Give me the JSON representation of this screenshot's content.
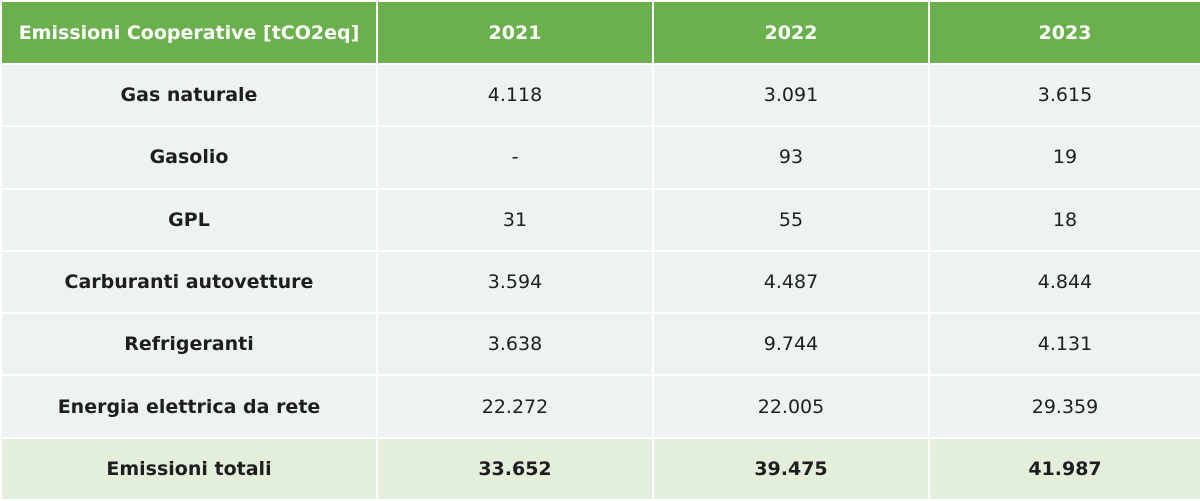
{
  "table": {
    "header": {
      "label": "Emissioni Cooperative [tCO2eq]",
      "years": [
        "2021",
        "2022",
        "2023"
      ]
    },
    "rows": [
      {
        "label": "Gas naturale",
        "values": [
          "4.118",
          "3.091",
          "3.615"
        ]
      },
      {
        "label": "Gasolio",
        "values": [
          "-",
          "93",
          "19"
        ]
      },
      {
        "label": "GPL",
        "values": [
          "31",
          "55",
          "18"
        ]
      },
      {
        "label": "Carburanti autovetture",
        "values": [
          "3.594",
          "4.487",
          "4.844"
        ]
      },
      {
        "label": "Refrigeranti",
        "values": [
          "3.638",
          "9.744",
          "4.131"
        ]
      },
      {
        "label": "Energia elettrica da rete",
        "values": [
          "22.272",
          "22.005",
          "29.359"
        ]
      }
    ],
    "total": {
      "label": "Emissioni totali",
      "values": [
        "33.652",
        "39.475",
        "41.987"
      ]
    }
  },
  "colors": {
    "header_bg": "#6ab04c",
    "row_bg": "#eef2f3",
    "total_bg": "#e3eedb"
  }
}
